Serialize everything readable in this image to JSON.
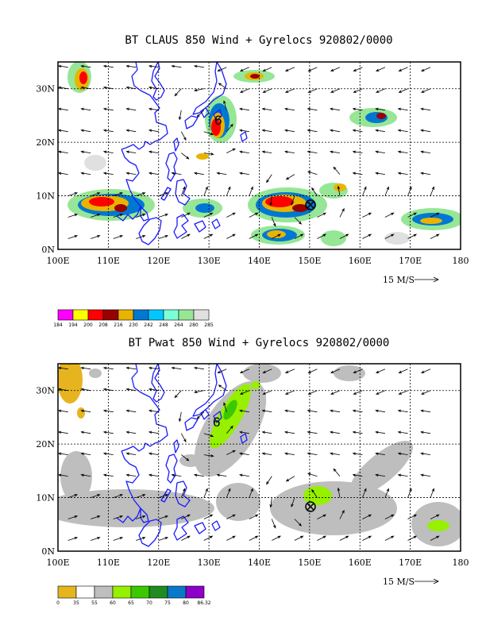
{
  "panels": [
    {
      "title": "BT CLAUS 850 Wind + Gyrelocs 920802/0000",
      "field": "claus",
      "x_ticks": [
        "100E",
        "110E",
        "120E",
        "130E",
        "140E",
        "150E",
        "160E",
        "170E",
        "180"
      ],
      "y_ticks": [
        "0N",
        "10N",
        "20N",
        "30N"
      ],
      "reference_vector": "15 M/S",
      "colorbar": {
        "labels": [
          "184",
          "194",
          "200",
          "208",
          "216",
          "230",
          "242",
          "248",
          "264",
          "280",
          "285"
        ],
        "colors": [
          "#ff00ff",
          "#ffff00",
          "#ff0000",
          "#990000",
          "#e8b400",
          "#0078d2",
          "#00c8ff",
          "#7cffd6",
          "#96e696",
          "#e0e0e0"
        ]
      },
      "gyrelocs": [
        {
          "lon": 130,
          "lat": 25,
          "symbol": "6"
        },
        {
          "lon": 149,
          "lat": 9,
          "symbol": "circle-x"
        }
      ]
    },
    {
      "title": "BT Pwat 850 Wind + Gyrelocs 920802/0000",
      "field": "pwat",
      "x_ticks": [
        "100E",
        "110E",
        "120E",
        "130E",
        "140E",
        "150E",
        "160E",
        "170E",
        "180"
      ],
      "y_ticks": [
        "0N",
        "10N",
        "20N",
        "30N"
      ],
      "reference_vector": "15 M/S",
      "colorbar": {
        "labels": [
          "0",
          "35",
          "55",
          "60",
          "65",
          "70",
          "75",
          "80",
          "86.32"
        ],
        "colors": [
          "#e6b41e",
          "#ffffff",
          "#bebebe",
          "#96f000",
          "#3cc800",
          "#1e8c1e",
          "#0a78c8",
          "#8c00c8"
        ]
      },
      "gyrelocs": [
        {
          "lon": 130,
          "lat": 25,
          "symbol": "6"
        },
        {
          "lon": 149,
          "lat": 9,
          "symbol": "circle-x"
        }
      ]
    }
  ]
}
